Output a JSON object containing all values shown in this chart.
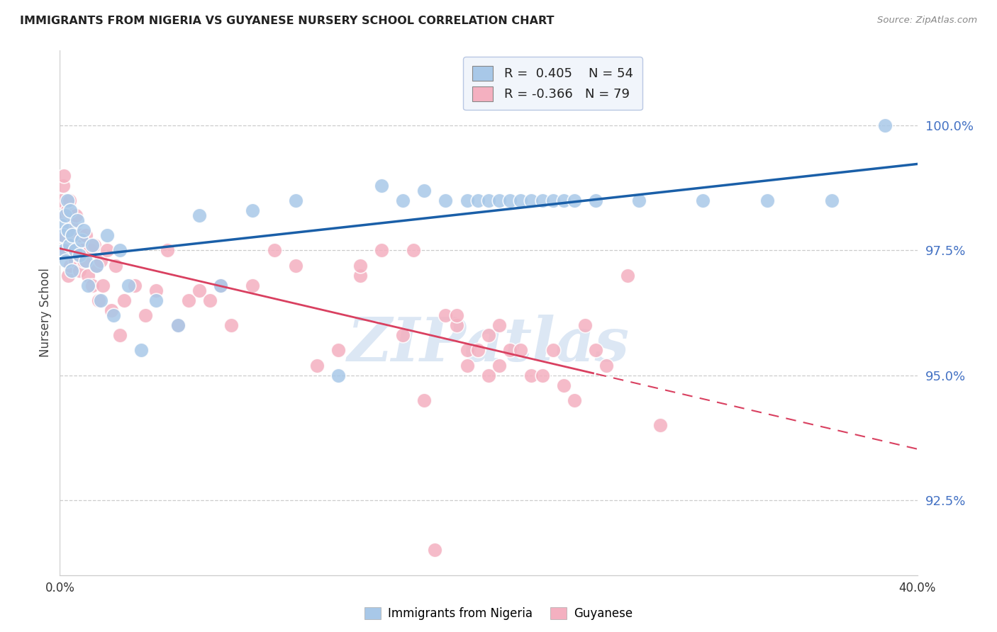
{
  "title": "IMMIGRANTS FROM NIGERIA VS GUYANESE NURSERY SCHOOL CORRELATION CHART",
  "source": "Source: ZipAtlas.com",
  "ylabel": "Nursery School",
  "yticks": [
    92.5,
    95.0,
    97.5,
    100.0
  ],
  "ytick_labels": [
    "92.5%",
    "95.0%",
    "97.5%",
    "100.0%"
  ],
  "xmin": 0.0,
  "xmax": 40.0,
  "ymin": 91.0,
  "ymax": 101.5,
  "blue_R": 0.405,
  "blue_N": 54,
  "pink_R": -0.366,
  "pink_N": 79,
  "blue_color": "#a8c8e8",
  "pink_color": "#f4b0c0",
  "blue_line_color": "#1a5fa8",
  "pink_line_color": "#d94060",
  "watermark": "ZIPatlas",
  "legend_label_blue": "Immigrants from Nigeria",
  "legend_label_pink": "Guyanese",
  "grid_color": "#cccccc",
  "yaxis_tick_color": "#4472c4",
  "legend_face_color": "#eef3fa",
  "legend_edge_color": "#aabbdd",
  "blue_x": [
    0.1,
    0.15,
    0.2,
    0.25,
    0.3,
    0.35,
    0.4,
    0.45,
    0.5,
    0.55,
    0.6,
    0.7,
    0.8,
    0.9,
    1.0,
    1.1,
    1.2,
    1.3,
    1.5,
    1.7,
    1.9,
    2.2,
    2.5,
    2.8,
    3.2,
    3.8,
    4.5,
    5.5,
    6.5,
    7.5,
    9.0,
    11.0,
    13.0,
    15.0,
    16.0,
    17.0,
    18.0,
    19.0,
    19.5,
    20.0,
    20.5,
    21.0,
    21.5,
    22.0,
    22.5,
    23.0,
    23.5,
    24.0,
    25.0,
    27.0,
    30.0,
    33.0,
    36.0,
    38.5
  ],
  "blue_y": [
    98.0,
    97.8,
    97.5,
    98.2,
    97.3,
    98.5,
    97.9,
    97.6,
    98.3,
    97.1,
    97.8,
    97.5,
    98.1,
    97.4,
    97.7,
    97.9,
    97.3,
    96.8,
    97.6,
    97.2,
    96.5,
    97.8,
    96.2,
    97.5,
    96.8,
    95.5,
    96.5,
    96.0,
    98.2,
    96.8,
    98.3,
    98.5,
    95.0,
    98.8,
    98.5,
    98.7,
    98.5,
    98.5,
    98.5,
    98.5,
    98.5,
    98.5,
    98.5,
    98.5,
    98.5,
    98.5,
    98.5,
    98.5,
    98.5,
    98.5,
    98.5,
    98.5,
    98.5,
    100.0
  ],
  "pink_x": [
    0.05,
    0.1,
    0.15,
    0.2,
    0.25,
    0.3,
    0.35,
    0.4,
    0.45,
    0.5,
    0.55,
    0.6,
    0.65,
    0.7,
    0.75,
    0.8,
    0.85,
    0.9,
    0.95,
    1.0,
    1.1,
    1.2,
    1.3,
    1.4,
    1.5,
    1.6,
    1.7,
    1.8,
    1.9,
    2.0,
    2.2,
    2.4,
    2.6,
    2.8,
    3.0,
    3.5,
    4.0,
    4.5,
    5.0,
    5.5,
    6.0,
    6.5,
    7.0,
    7.5,
    8.0,
    9.0,
    10.0,
    11.0,
    12.0,
    13.0,
    14.0,
    15.0,
    16.0,
    17.0,
    18.0,
    19.0,
    19.5,
    20.0,
    20.5,
    21.0,
    22.0,
    23.0,
    24.0,
    25.0,
    14.0,
    16.5,
    18.5,
    20.0,
    18.5,
    19.0,
    20.5,
    21.5,
    22.5,
    23.5,
    24.5,
    25.5,
    26.5,
    28.0,
    17.5
  ],
  "pink_y": [
    98.5,
    97.8,
    98.8,
    99.0,
    98.2,
    97.5,
    98.3,
    97.0,
    98.5,
    97.2,
    98.0,
    97.8,
    97.5,
    97.3,
    98.2,
    97.6,
    97.4,
    97.1,
    97.8,
    97.5,
    97.3,
    97.8,
    97.0,
    97.5,
    96.8,
    97.6,
    97.2,
    96.5,
    97.3,
    96.8,
    97.5,
    96.3,
    97.2,
    95.8,
    96.5,
    96.8,
    96.2,
    96.7,
    97.5,
    96.0,
    96.5,
    96.7,
    96.5,
    96.8,
    96.0,
    96.8,
    97.5,
    97.2,
    95.2,
    95.5,
    97.0,
    97.5,
    95.8,
    94.5,
    96.2,
    95.5,
    95.5,
    95.0,
    95.2,
    95.5,
    95.0,
    95.5,
    94.5,
    95.5,
    97.2,
    97.5,
    96.0,
    95.8,
    96.2,
    95.2,
    96.0,
    95.5,
    95.0,
    94.8,
    96.0,
    95.2,
    97.0,
    94.0,
    91.5
  ]
}
